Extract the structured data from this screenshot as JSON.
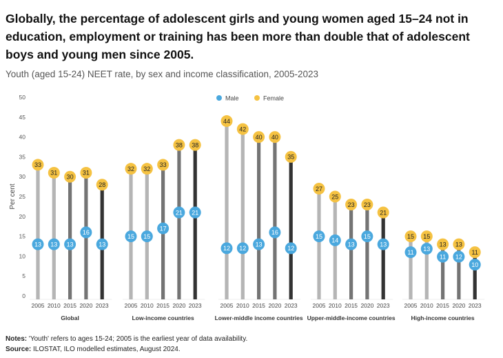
{
  "title": "Globally, the percentage of adolescent girls and young women aged 15–24 not in education, employment or training has been more than double that of adolescent boys and young men since 2005.",
  "subtitle": "Youth (aged 15-24) NEET rate, by sex and income classification, 2005-2023",
  "notes": {
    "label": "Notes:",
    "text": " 'Youth' refers to ages 15-24; 2005 is the earliest year of data availability."
  },
  "source": {
    "label": "Source:",
    "text": " ILOSTAT, ILO modelled estimates, August 2024."
  },
  "chart_data": {
    "type": "dumbbell",
    "ylabel": "Per cent",
    "ylim": [
      0,
      50
    ],
    "yticks": [
      0,
      5,
      10,
      15,
      20,
      25,
      30,
      35,
      40,
      45,
      50
    ],
    "legend": {
      "position": "top-center",
      "items": [
        {
          "name": "Male",
          "color": "#4aa8de"
        },
        {
          "name": "Female",
          "color": "#f5c242"
        }
      ]
    },
    "year_colors": {
      "2005": "#b5b5b5",
      "2010": "#b5b5b5",
      "2015": "#747474",
      "2020": "#747474",
      "2023": "#333333"
    },
    "years": [
      "2005",
      "2010",
      "2015",
      "2020",
      "2023"
    ],
    "groups": [
      {
        "name": "Global",
        "male": [
          13,
          13,
          13,
          16,
          13
        ],
        "female": [
          33,
          31,
          30,
          31,
          28
        ]
      },
      {
        "name": "Low-income countries",
        "male": [
          15,
          15,
          17,
          21,
          21
        ],
        "female": [
          32,
          32,
          33,
          38,
          38
        ]
      },
      {
        "name": "Lower-middle income countries",
        "male": [
          12,
          12,
          13,
          16,
          12
        ],
        "female": [
          44,
          42,
          40,
          40,
          35
        ]
      },
      {
        "name": "Upper-middle-income countries",
        "male": [
          15,
          14,
          13,
          15,
          13
        ],
        "female": [
          27,
          25,
          23,
          23,
          21
        ]
      },
      {
        "name": "High-income countries",
        "male": [
          11,
          13,
          11,
          12,
          10
        ],
        "female": [
          15,
          15,
          13,
          13,
          11
        ]
      }
    ]
  }
}
